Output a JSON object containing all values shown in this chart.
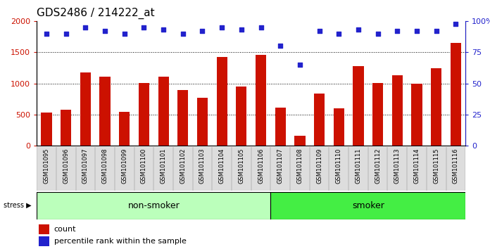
{
  "title": "GDS2486 / 214222_at",
  "samples": [
    "GSM101095",
    "GSM101096",
    "GSM101097",
    "GSM101098",
    "GSM101099",
    "GSM101100",
    "GSM101101",
    "GSM101102",
    "GSM101103",
    "GSM101104",
    "GSM101105",
    "GSM101106",
    "GSM101107",
    "GSM101108",
    "GSM101109",
    "GSM101110",
    "GSM101111",
    "GSM101112",
    "GSM101113",
    "GSM101114",
    "GSM101115",
    "GSM101116"
  ],
  "counts": [
    530,
    580,
    1180,
    1110,
    540,
    1010,
    1110,
    890,
    770,
    1420,
    950,
    1460,
    610,
    155,
    840,
    595,
    1280,
    1010,
    1130,
    1000,
    1245,
    1650
  ],
  "percentile_ranks": [
    90,
    90,
    95,
    92,
    90,
    95,
    93,
    90,
    92,
    95,
    93,
    95,
    80,
    65,
    92,
    90,
    93,
    90,
    92,
    92,
    92,
    98
  ],
  "non_smoker_count": 12,
  "smoker_count": 10,
  "ylim_left": [
    0,
    2000
  ],
  "ylim_right": [
    0,
    100
  ],
  "yticks_left": [
    0,
    500,
    1000,
    1500,
    2000
  ],
  "yticks_right": [
    0,
    25,
    50,
    75,
    100
  ],
  "bar_color": "#cc1100",
  "dot_color": "#2222cc",
  "nonsmoker_color": "#bbffbb",
  "smoker_color": "#44ee44",
  "xticklabel_bg": "#dddddd",
  "left_axis_color": "#cc1100",
  "right_axis_color": "#2222cc",
  "stress_label": "stress",
  "nonsmoker_label": "non-smoker",
  "smoker_label": "smoker",
  "legend_count": "count",
  "legend_percentile": "percentile rank within the sample",
  "title_fontsize": 11,
  "label_fontsize": 8,
  "tick_fontsize": 8,
  "sample_fontsize": 6,
  "annotation_fontsize": 9,
  "band_fontsize": 9
}
